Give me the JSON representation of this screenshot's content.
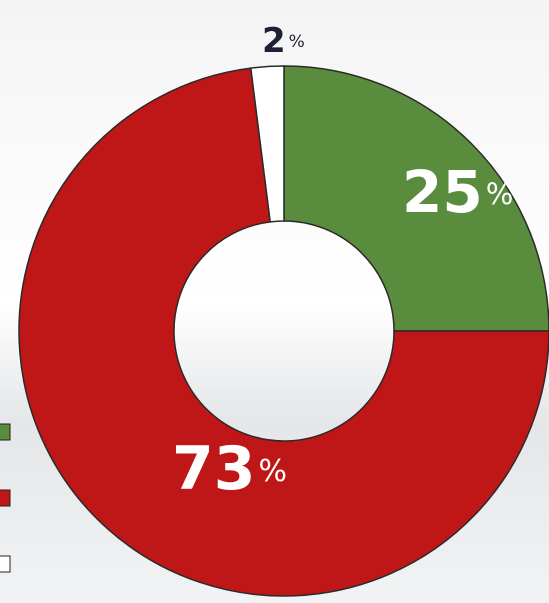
{
  "chart_data": {
    "type": "donut",
    "values": [
      25,
      73,
      2
    ],
    "value_labels": [
      "25%",
      "73%",
      "2%"
    ],
    "colors": [
      "#5a8c3e",
      "#bf1718",
      "#ffffff"
    ]
  }
}
